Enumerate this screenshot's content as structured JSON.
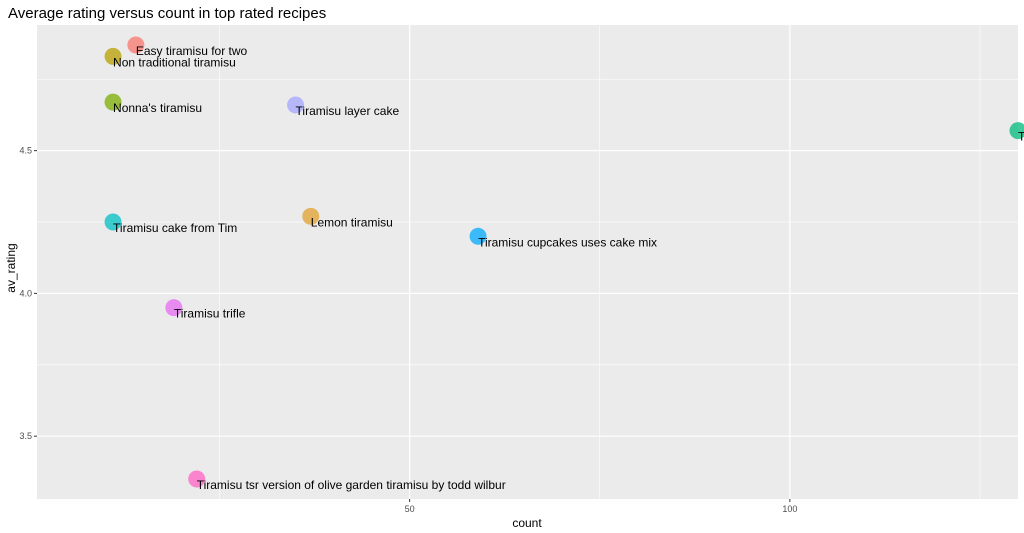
{
  "chart_data": {
    "type": "scatter",
    "title": "Average rating versus count in top rated recipes",
    "xlabel": "count",
    "ylabel": "av_rating",
    "xlim": [
      1,
      130
    ],
    "ylim": [
      3.28,
      4.94
    ],
    "x_ticks": [
      50,
      100
    ],
    "x_tick_labels": [
      "50",
      "100"
    ],
    "y_ticks": [
      3.5,
      4.0,
      4.5
    ],
    "y_tick_labels": [
      "3.5",
      "4.0",
      "4.5"
    ],
    "x_minor_ticks": [
      25,
      75,
      125
    ],
    "y_minor_ticks": [
      3.75,
      4.25,
      4.75
    ],
    "grid": true,
    "legend": "none",
    "background": "#ebebeb",
    "gridline_color": "#ffffff",
    "points": [
      {
        "label": "Easy tiramisu for two",
        "x": 14,
        "y": 4.87,
        "color": "#F8766D"
      },
      {
        "label": "Non traditional tiramisu",
        "x": 11,
        "y": 4.83,
        "color": "#B79F00"
      },
      {
        "label": "Nonna's tiramisu",
        "x": 11,
        "y": 4.67,
        "color": "#7CAE00"
      },
      {
        "label": "Tiramisu layer cake",
        "x": 35,
        "y": 4.66,
        "color": "#A3A5FF"
      },
      {
        "label": "Tiramisu",
        "x": 130,
        "y": 4.57,
        "color": "#00BA7C"
      },
      {
        "label": "Lemon tiramisu",
        "x": 37,
        "y": 4.27,
        "color": "#E0A02F"
      },
      {
        "label": "Tiramisu cake from Tim",
        "x": 11,
        "y": 4.25,
        "color": "#00BFC4"
      },
      {
        "label": "Tiramisu cupcakes  uses cake mix",
        "x": 59,
        "y": 4.2,
        "color": "#00A9FF"
      },
      {
        "label": "Tiramisu trifle",
        "x": 19,
        "y": 3.95,
        "color": "#E76BF3"
      },
      {
        "label": "Tiramisu tsr version of olive garden tiramisu by todd wilbur",
        "x": 22,
        "y": 3.35,
        "color": "#FF61C3"
      }
    ]
  }
}
